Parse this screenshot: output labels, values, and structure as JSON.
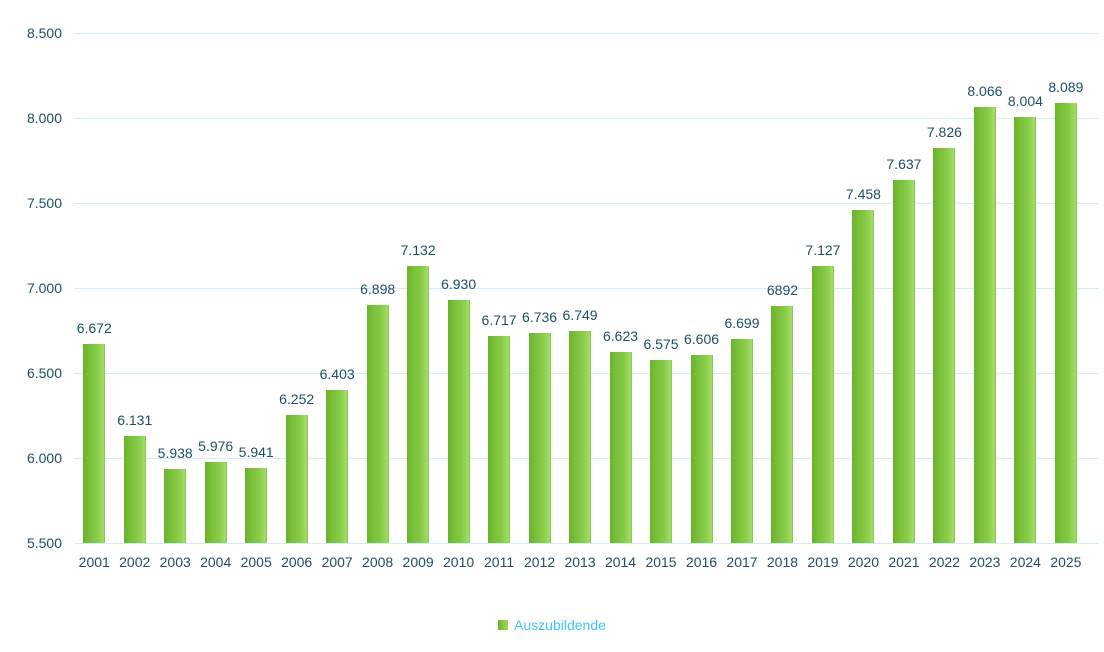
{
  "chart_data": {
    "type": "bar",
    "title": "",
    "xlabel": "",
    "ylabel": "",
    "categories": [
      "2001",
      "2002",
      "2003",
      "2004",
      "2005",
      "2006",
      "2007",
      "2008",
      "2009",
      "2010",
      "2011",
      "2012",
      "2013",
      "2014",
      "2015",
      "2016",
      "2017",
      "2018",
      "2019",
      "2020",
      "2021",
      "2022",
      "2023",
      "2024",
      "2025"
    ],
    "values": [
      6672,
      6131,
      5938,
      5976,
      5941,
      6252,
      6403,
      6898,
      7132,
      6930,
      6717,
      6736,
      6749,
      6623,
      6575,
      6606,
      6699,
      6892,
      7127,
      7458,
      7637,
      7826,
      8066,
      8004,
      8089
    ],
    "value_labels": [
      "6.672",
      "6.131",
      "5.938",
      "5.976",
      "5.941",
      "6.252",
      "6.403",
      "6.898",
      "7.132",
      "6.930",
      "6.717",
      "6.736",
      "6.749",
      "6.623",
      "6.575",
      "6.606",
      "6.699",
      "6892",
      "7.127",
      "7.458",
      "7.637",
      "7.826",
      "8.066",
      "8.004",
      "8.089"
    ],
    "ylim": [
      5500,
      8500
    ],
    "yticks": [
      {
        "value": 8500,
        "label": "8.500"
      },
      {
        "value": 8000,
        "label": "8.000"
      },
      {
        "value": 7500,
        "label": "7.500"
      },
      {
        "value": 7000,
        "label": "7.000"
      },
      {
        "value": 6500,
        "label": "6.500"
      },
      {
        "value": 6000,
        "label": "6.000"
      },
      {
        "value": 5500,
        "label": "5.500"
      }
    ],
    "grid": true,
    "legend": {
      "label": "Auszubildende",
      "position": "bottom-center",
      "marker_color": "#76bd3a",
      "text_color": "#3cc7f2"
    },
    "colors": {
      "bar_main": "#7ac03a",
      "bar_gradient": [
        "#6cb22b",
        "#7ac03a",
        "#85ca45",
        "#96d557",
        "#a6dd6e",
        "#7fc23e"
      ],
      "gridline": "#cfeef6",
      "text": "#1f4e63",
      "background": "#ffffff"
    }
  }
}
